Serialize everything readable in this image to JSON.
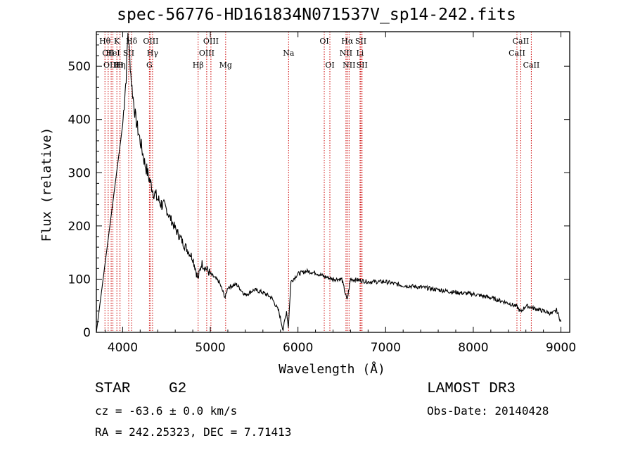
{
  "chart_data": {
    "type": "line",
    "title": "spec-56776-HD161834N071537V_sp14-242.fits",
    "xlabel": "Wavelength (Å)",
    "ylabel": "Flux (relative)",
    "xlim": [
      3700,
      9100
    ],
    "ylim": [
      0,
      565
    ],
    "x_ticks": [
      4000,
      5000,
      6000,
      7000,
      8000,
      9000
    ],
    "y_ticks": [
      0,
      100,
      200,
      300,
      400,
      500
    ],
    "series": [
      {
        "name": "flux",
        "x": [
          3700,
          3800,
          3900,
          4000,
          4040,
          4060,
          4080,
          4100,
          4120,
          4150,
          4200,
          4250,
          4300,
          4350,
          4400,
          4500,
          4600,
          4700,
          4800,
          4860,
          4900,
          5000,
          5100,
          5170,
          5200,
          5300,
          5400,
          5500,
          5600,
          5700,
          5780,
          5830,
          5870,
          5890,
          5920,
          6000,
          6100,
          6200,
          6300,
          6400,
          6500,
          6560,
          6600,
          6700,
          6800,
          7000,
          7200,
          7400,
          7600,
          7800,
          8000,
          8200,
          8400,
          8500,
          8540,
          8600,
          8700,
          8800,
          8900,
          8950,
          9000
        ],
        "y": [
          0,
          130,
          260,
          390,
          480,
          565,
          520,
          470,
          440,
          400,
          360,
          320,
          290,
          265,
          250,
          230,
          195,
          165,
          140,
          100,
          130,
          110,
          95,
          65,
          85,
          90,
          70,
          80,
          75,
          65,
          40,
          5,
          40,
          10,
          95,
          110,
          115,
          112,
          105,
          100,
          100,
          60,
          100,
          98,
          95,
          95,
          88,
          85,
          80,
          75,
          72,
          65,
          55,
          48,
          38,
          50,
          45,
          40,
          35,
          42,
          20
        ]
      }
    ],
    "line_markers": [
      {
        "label": "Hθ",
        "wavelength": 3798,
        "row": 1
      },
      {
        "label": "CII",
        "wavelength": 3835,
        "row": 2
      },
      {
        "label": "OIII",
        "wavelength": 3869,
        "row": 3
      },
      {
        "label": "HeI",
        "wavelength": 3889,
        "row": 2
      },
      {
        "label": "K",
        "wavelength": 3934,
        "row": 1
      },
      {
        "label": "Hη",
        "wavelength": 3970,
        "row": 3
      },
      {
        "label": "H",
        "wavelength": 3969,
        "row": 3
      },
      {
        "label": "SII",
        "wavelength": 4069,
        "row": 2
      },
      {
        "label": "Hδ",
        "wavelength": 4102,
        "row": 1
      },
      {
        "label": "OIII",
        "wavelength": 4321,
        "row": 1
      },
      {
        "label": "Hγ",
        "wavelength": 4341,
        "row": 2
      },
      {
        "label": "G",
        "wavelength": 4305,
        "row": 3
      },
      {
        "label": "Hβ",
        "wavelength": 4861,
        "row": 3
      },
      {
        "label": "OIII",
        "wavelength": 4959,
        "row": 2
      },
      {
        "label": "OIII",
        "wavelength": 5007,
        "row": 1
      },
      {
        "label": "Mg",
        "wavelength": 5175,
        "row": 3
      },
      {
        "label": "Na",
        "wavelength": 5893,
        "row": 2
      },
      {
        "label": "OI",
        "wavelength": 6300,
        "row": 1
      },
      {
        "label": "OI",
        "wavelength": 6364,
        "row": 3
      },
      {
        "label": "NII",
        "wavelength": 6548,
        "row": 2
      },
      {
        "label": "NII",
        "wavelength": 6583,
        "row": 3
      },
      {
        "label": "Hα",
        "wavelength": 6563,
        "row": 1
      },
      {
        "label": "Li",
        "wavelength": 6708,
        "row": 2
      },
      {
        "label": "SII",
        "wavelength": 6717,
        "row": 1
      },
      {
        "label": "SII",
        "wavelength": 6731,
        "row": 3
      },
      {
        "label": "CaII",
        "wavelength": 8498,
        "row": 2
      },
      {
        "label": "CaII",
        "wavelength": 8542,
        "row": 1
      },
      {
        "label": "CaII",
        "wavelength": 8662,
        "row": 3
      }
    ]
  },
  "info": {
    "object_type": "STAR",
    "subclass": "G2",
    "survey": "LAMOST DR3",
    "cz": "cz = -63.6 ± 0.0 km/s",
    "obs_date": "Obs-Date: 20140428",
    "coords": "RA = 242.25323, DEC =   7.71413"
  },
  "colors": {
    "spectrum": "#000000",
    "marker": "#cc0000",
    "axes": "#000000"
  }
}
